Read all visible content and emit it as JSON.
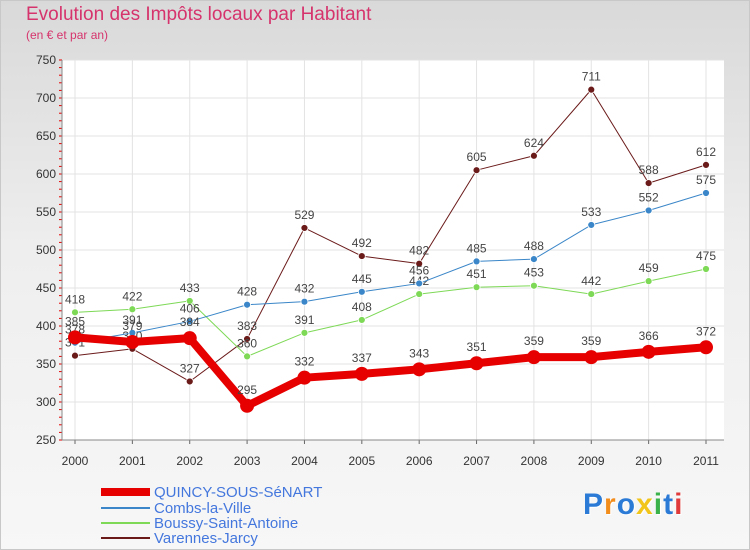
{
  "header": {
    "title": "Evolution des Impôts locaux par Habitant",
    "subtitle": "(en € et par an)"
  },
  "brand": {
    "logo": [
      "P",
      "r",
      "o",
      "x",
      "i",
      "t",
      "i"
    ],
    "logo_colors": [
      "#2b7bd6",
      "#f28c1b",
      "#2b7bd6",
      "#f2c51b",
      "#3bb24a",
      "#2b7bd6",
      "#e03a3a"
    ]
  },
  "chart_data": {
    "type": "line",
    "title": "Evolution des Impôts locaux par Habitant",
    "subtitle": "(en € et par an)",
    "xlabel": "",
    "ylabel": "",
    "x": [
      "2000",
      "2001",
      "2002",
      "2003",
      "2004",
      "2005",
      "2006",
      "2007",
      "2008",
      "2009",
      "2010",
      "2011"
    ],
    "ylim": [
      250,
      750
    ],
    "yticks": [
      250,
      300,
      350,
      400,
      450,
      500,
      550,
      600,
      650,
      700,
      750
    ],
    "grid": true,
    "legend": "bottom-left",
    "series": [
      {
        "name": "QUINCY-SOUS-SéNART",
        "color": "#e60000",
        "values": [
          385,
          379,
          384,
          295,
          332,
          337,
          343,
          351,
          359,
          359,
          366,
          372
        ]
      },
      {
        "name": "Combs-la-Ville",
        "color": "#3a86c8",
        "values": [
          378,
          391,
          406,
          428,
          432,
          445,
          456,
          485,
          488,
          533,
          552,
          575
        ]
      },
      {
        "name": "Boussy-Saint-Antoine",
        "color": "#7ed957",
        "values": [
          418,
          422,
          433,
          360,
          391,
          408,
          442,
          451,
          453,
          442,
          459,
          475
        ]
      },
      {
        "name": "Varennes-Jarcy",
        "color": "#6b1a1a",
        "values": [
          361,
          370,
          327,
          383,
          529,
          492,
          482,
          605,
          624,
          711,
          588,
          612
        ]
      }
    ]
  }
}
